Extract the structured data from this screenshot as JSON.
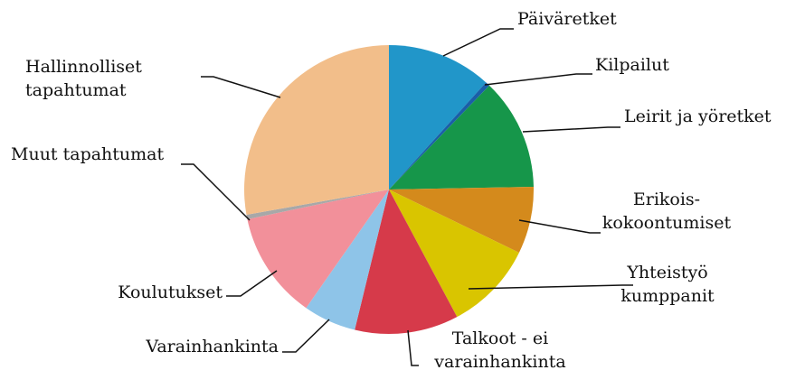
{
  "chart_data": {
    "type": "pie",
    "categories": [
      "Päiväretket",
      "Kilpailut",
      "Leirit ja yöretket",
      "Erikois-\nkokoontumiset",
      "Yhteistyö\nkumppanit",
      "Talkoot - ei\nvarainhankinta",
      "Varainhankinta",
      "Koulutukset",
      "Muut tapahtumat",
      "Hallinnolliset\ntapahtumat"
    ],
    "values": [
      11.7,
      0.5,
      12.5,
      7.5,
      10,
      11.6,
      5.9,
      12,
      0.5,
      27.8
    ],
    "colors": [
      "#2196c9",
      "#1a5fa8",
      "#16964a",
      "#d48a1c",
      "#d9c500",
      "#d63a4a",
      "#8ec4e8",
      "#f2909a",
      "#a8a8a8",
      "#f2be8a"
    ]
  }
}
